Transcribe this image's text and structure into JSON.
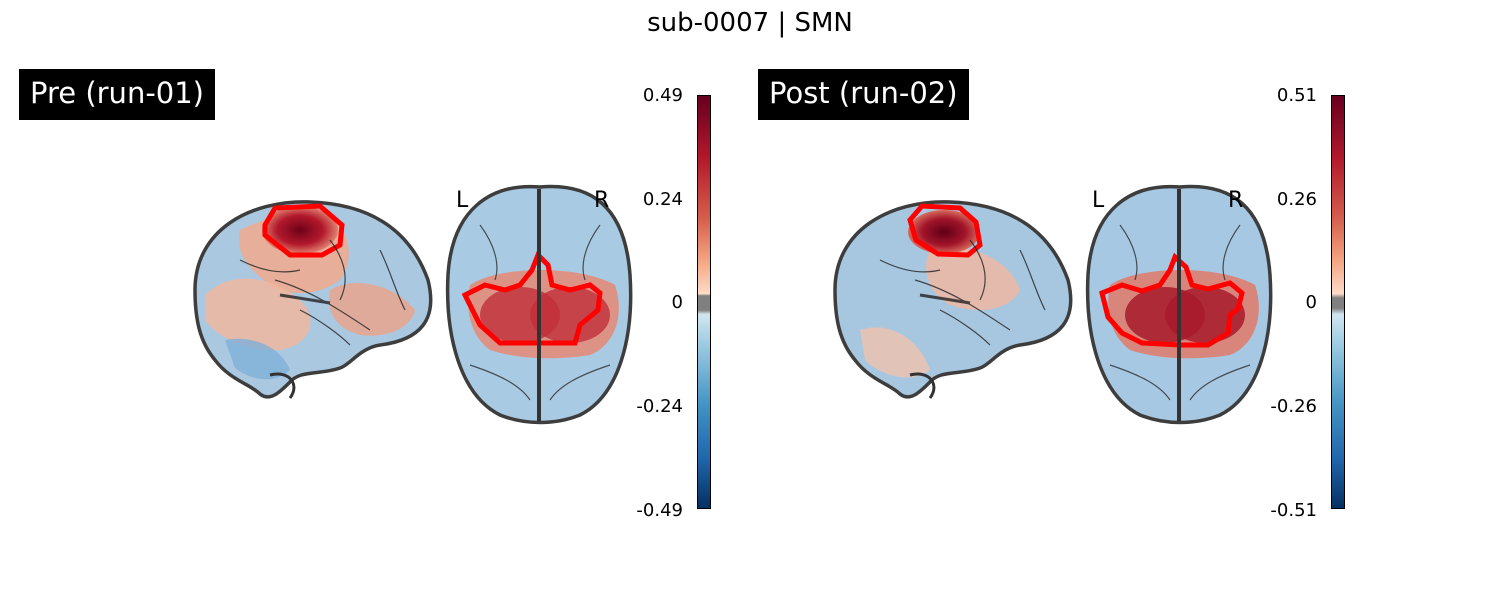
{
  "title": "sub-0007 | SMN",
  "panels": [
    {
      "label": "Pre (run-01)",
      "hemi_left": "L",
      "hemi_right": "R",
      "colorbar": {
        "max": "0.49",
        "high": "0.24",
        "zero": "0",
        "low": "-0.24",
        "min": "-0.49"
      }
    },
    {
      "label": "Post (run-02)",
      "hemi_left": "L",
      "hemi_right": "R",
      "colorbar": {
        "max": "0.51",
        "high": "0.26",
        "zero": "0",
        "low": "-0.26",
        "min": "-0.51"
      }
    }
  ],
  "colors": {
    "roi_outline": "#ff0000",
    "positive": "#8b0a1e",
    "negative": "#1f5a9a",
    "neutral_band": "#808080"
  }
}
